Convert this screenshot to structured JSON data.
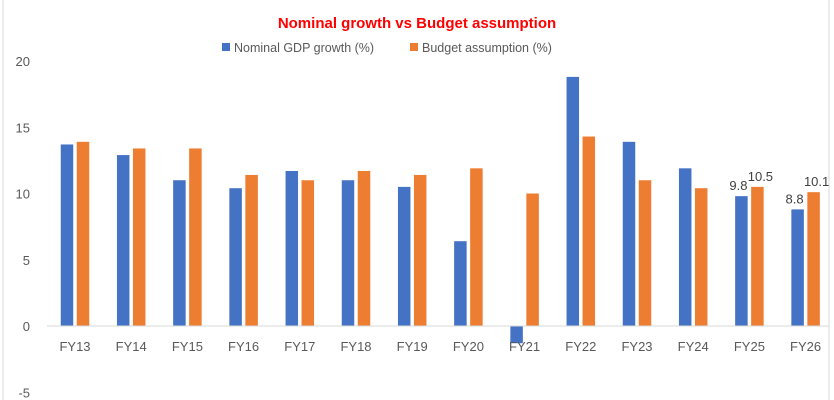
{
  "chart_data": {
    "type": "bar",
    "title": "Nominal growth vs Budget assumption",
    "xlabel": "",
    "ylabel": "",
    "ylim": [
      -5,
      20
    ],
    "yticks": [
      -5,
      0,
      5,
      10,
      15,
      20
    ],
    "grid": false,
    "legend_position": "top",
    "categories": [
      "FY13",
      "FY14",
      "FY15",
      "FY16",
      "FY17",
      "FY18",
      "FY19",
      "FY20",
      "FY21",
      "FY22",
      "FY23",
      "FY24",
      "FY25",
      "FY26"
    ],
    "series": [
      {
        "name": "Nominal GDP growth (%)",
        "color": "#4472c4",
        "values": [
          13.7,
          12.9,
          11.0,
          10.4,
          11.7,
          11.0,
          10.5,
          6.4,
          -1.3,
          18.8,
          13.9,
          11.9,
          9.8,
          8.8
        ],
        "data_labels": {
          "12": "9.8",
          "13": "8.8"
        }
      },
      {
        "name": "Budget assumption (%)",
        "color": "#ed7d31",
        "values": [
          13.9,
          13.4,
          13.4,
          11.4,
          11.0,
          11.7,
          11.4,
          11.9,
          10.0,
          14.3,
          11.0,
          10.4,
          10.5,
          10.1
        ],
        "data_labels": {
          "12": "10.5",
          "13": "10.1"
        }
      }
    ]
  }
}
